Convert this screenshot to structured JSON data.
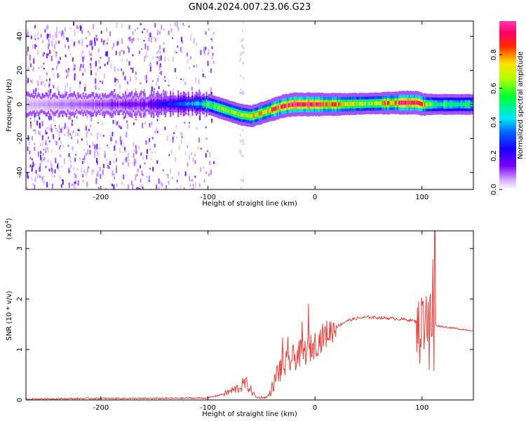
{
  "figure": {
    "title": "GN04.2024.007.23.06.G23"
  },
  "chart_data": [
    {
      "type": "heatmap",
      "name": "spectrogram",
      "xlabel": "Height of straight line (km)",
      "ylabel": "Frequency (Hz)",
      "xlim": [
        -270,
        148
      ],
      "ylim": [
        -50,
        49
      ],
      "xticks": [
        -200,
        -100,
        0,
        100
      ],
      "yticks": [
        -40,
        -20,
        0,
        20,
        40
      ],
      "colorbar": {
        "label": "Normalized spectral amplitude",
        "range": [
          0,
          1
        ],
        "ticks": [
          0.0,
          0.2,
          0.4,
          0.6,
          0.8
        ]
      },
      "ridge": {
        "x": [
          -270,
          -160,
          -110,
          -100,
          -90,
          -80,
          -70,
          -60,
          -50,
          -40,
          -30,
          -20,
          0,
          20,
          50,
          80,
          95,
          100,
          110,
          148
        ],
        "freq": [
          0,
          0,
          0.5,
          0,
          -2,
          -4,
          -6,
          -7,
          -5,
          -3,
          -1,
          0,
          0,
          0,
          0.5,
          1,
          1,
          0,
          0,
          0
        ],
        "amplitude": [
          0.05,
          0.15,
          0.4,
          0.55,
          0.6,
          0.65,
          0.65,
          0.7,
          0.75,
          0.85,
          0.9,
          0.92,
          0.95,
          0.8,
          0.6,
          0.9,
          0.95,
          0.8,
          0.55,
          0.5
        ]
      },
      "noise_region_xmax": -100
    },
    {
      "type": "line",
      "name": "snr",
      "xlabel": "Height of straight line (km)",
      "ylabel": "SNR (10 * v/v)",
      "scale_label": "(x10^4)",
      "xlim": [
        -270,
        148
      ],
      "ylim": [
        0,
        3.35
      ],
      "xticks": [
        -200,
        -100,
        0,
        100
      ],
      "yticks": [
        0,
        1,
        2,
        3
      ],
      "color": "#e8403a",
      "envelope": {
        "x": [
          -270,
          -200,
          -150,
          -100,
          -85,
          -70,
          -65,
          -55,
          -45,
          -40,
          -35,
          -25,
          -15,
          -5,
          0,
          10,
          20,
          30,
          40,
          50,
          60,
          70,
          80,
          90,
          95,
          100,
          105,
          110,
          112,
          120,
          130,
          148
        ],
        "y": [
          0.02,
          0.03,
          0.03,
          0.04,
          0.12,
          0.25,
          0.35,
          0.05,
          0.05,
          0.2,
          0.55,
          0.75,
          0.9,
          1.0,
          1.1,
          1.3,
          1.45,
          1.57,
          1.62,
          1.64,
          1.63,
          1.62,
          1.6,
          1.58,
          1.55,
          1.5,
          1.5,
          1.5,
          1.48,
          1.45,
          1.42,
          1.37
        ]
      },
      "spikes": [
        {
          "x": 112,
          "y": 3.35
        },
        {
          "x": 110,
          "y": 2.78
        },
        {
          "x": 108,
          "y": 2.1
        },
        {
          "x": 104,
          "y": 2.05
        },
        {
          "x": 101,
          "y": 1.95
        },
        {
          "x": 97,
          "y": 1.95
        },
        {
          "x": 107,
          "y": 0.6
        },
        {
          "x": 111,
          "y": 0.58
        },
        {
          "x": 98,
          "y": 0.72
        },
        {
          "x": -6,
          "y": 1.9
        },
        {
          "x": -25,
          "y": 1.25
        },
        {
          "x": -30,
          "y": 1.23
        },
        {
          "x": -12,
          "y": 1.55
        },
        {
          "x": -65,
          "y": 0.43
        },
        {
          "x": -40,
          "y": 0.35
        }
      ]
    }
  ]
}
